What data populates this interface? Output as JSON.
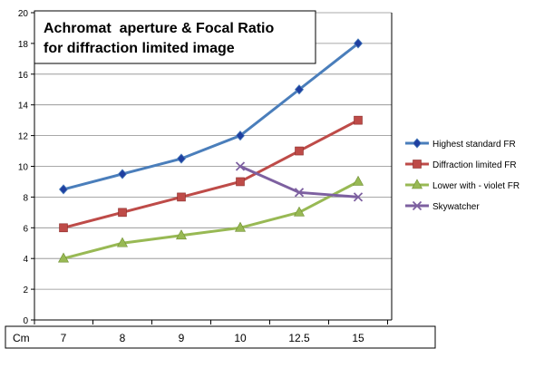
{
  "chart_data": {
    "type": "line",
    "title_lines": [
      "Achromat  aperture & Focal Ratio",
      "for diffraction limited image"
    ],
    "categories": [
      "7",
      "8",
      "9",
      "10",
      "12.5",
      "15"
    ],
    "xlabel": "Cm",
    "ylim": [
      0,
      20
    ],
    "yticks": [
      0,
      2,
      4,
      6,
      8,
      10,
      12,
      14,
      16,
      18,
      20
    ],
    "grid": "horizontal",
    "legend_position": "right",
    "series": [
      {
        "name": "Highest standard FR",
        "values": [
          8.5,
          9.5,
          10.5,
          12,
          15,
          18
        ],
        "color": "#4a7ebb",
        "marker": "diamond"
      },
      {
        "name": "Diffraction limited FR",
        "values": [
          6,
          7,
          8,
          9,
          11,
          13
        ],
        "color": "#be4b48",
        "marker": "square"
      },
      {
        "name": "Lower with - violet FR",
        "values": [
          4,
          5,
          5.5,
          6,
          7,
          9
        ],
        "color": "#98b954",
        "marker": "triangle"
      },
      {
        "name": "Skywatcher",
        "values": [
          null,
          null,
          null,
          10,
          8.3,
          8
        ],
        "color": "#7d60a0",
        "marker": "x"
      }
    ]
  }
}
